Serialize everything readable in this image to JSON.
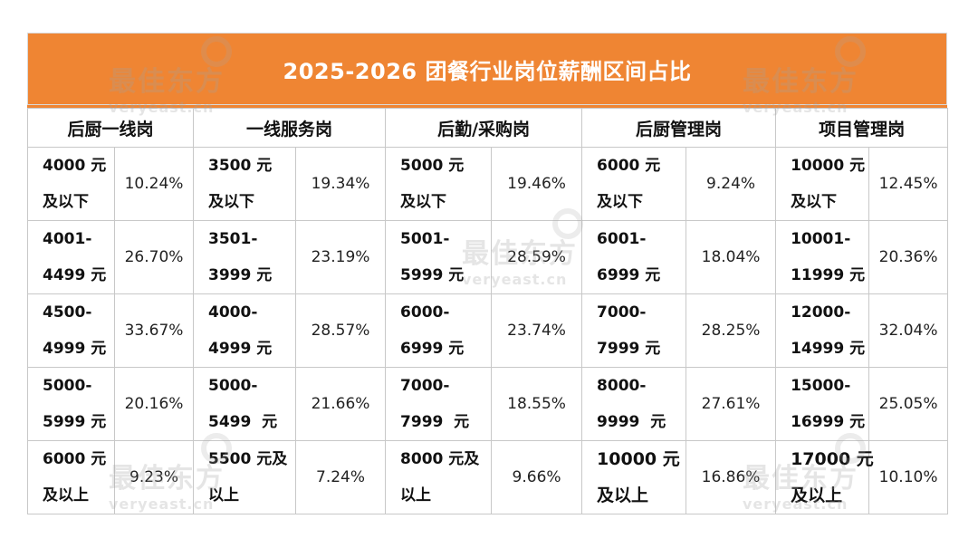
{
  "title": "2025-2026 团餐行业岗位薪酬区间占比",
  "headers": [
    "后厨一线岗",
    "一线服务岗",
    "后勤/采购岗",
    "后厨管理岗",
    "项目管理岗"
  ],
  "rows": [
    [
      {
        "range": [
          "4000 元",
          "及以下"
        ],
        "pct": "10.24%"
      },
      {
        "range": [
          "3500 元",
          "及以下"
        ],
        "pct": "19.34%"
      },
      {
        "range": [
          "5000 元",
          "及以下"
        ],
        "pct": "19.46%"
      },
      {
        "range": [
          "6000 元",
          "及以下"
        ],
        "pct": "9.24%"
      },
      {
        "range": [
          "10000 元",
          "及以下"
        ],
        "pct": "12.45%"
      }
    ],
    [
      {
        "range": [
          "4001-",
          "4499 元"
        ],
        "pct": "26.70%"
      },
      {
        "range": [
          "3501-",
          "3999 元"
        ],
        "pct": "23.19%"
      },
      {
        "range": [
          "5001-",
          "5999 元"
        ],
        "pct": "28.59%"
      },
      {
        "range": [
          "6001-",
          "6999 元"
        ],
        "pct": "18.04%"
      },
      {
        "range": [
          "10001-",
          "11999 元"
        ],
        "pct": "20.36%"
      }
    ],
    [
      {
        "range": [
          "4500-",
          "4999 元"
        ],
        "pct": "33.67%"
      },
      {
        "range": [
          "4000-",
          "4999 元"
        ],
        "pct": "28.57%"
      },
      {
        "range": [
          "6000-",
          "6999 元"
        ],
        "pct": "23.74%"
      },
      {
        "range": [
          "7000-",
          "7999 元"
        ],
        "pct": "28.25%"
      },
      {
        "range": [
          "12000-",
          "14999 元"
        ],
        "pct": "32.04%"
      }
    ],
    [
      {
        "range": [
          "5000-",
          "5999 元"
        ],
        "pct": "20.16%"
      },
      {
        "range": [
          "5000-",
          "5499  元"
        ],
        "pct": "21.66%"
      },
      {
        "range": [
          "7000-",
          "7999  元"
        ],
        "pct": "18.55%"
      },
      {
        "range": [
          "8000-",
          "9999  元"
        ],
        "pct": "27.61%"
      },
      {
        "range": [
          "15000-",
          "16999 元"
        ],
        "pct": "25.05%"
      }
    ],
    [
      {
        "range": [
          "6000 元",
          "及以上"
        ],
        "pct": "9.23%"
      },
      {
        "range": [
          "5500 元及",
          "以上"
        ],
        "pct": "7.24%"
      },
      {
        "range": [
          "8000 元及",
          "以上"
        ],
        "pct": "9.66%"
      },
      {
        "range": [
          "10000 元",
          "及以上"
        ],
        "pct": "16.86%"
      },
      {
        "range": [
          "17000 元",
          "及以上"
        ],
        "pct": "10.10%"
      }
    ]
  ],
  "watermark": {
    "cn": "最佳东方",
    "en": "veryeast.cn"
  },
  "colors": {
    "header_bg": "#ef8533",
    "header_text": "#ffffff",
    "border": "#c8c8c8"
  }
}
